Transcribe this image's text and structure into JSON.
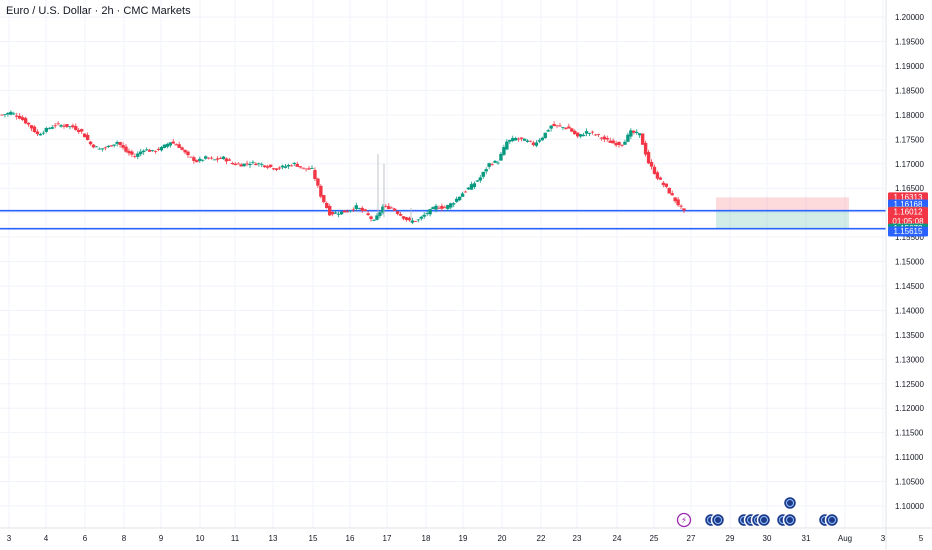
{
  "chart_data": {
    "type": "candlestick",
    "title": "Euro / U.S. Dollar · 2h · CMC Markets",
    "ylim": [
      1.0955,
      1.2035
    ],
    "y_ticks": [
      "1.20000",
      "1.19500",
      "1.19000",
      "1.18500",
      "1.18000",
      "1.17500",
      "1.17000",
      "1.16500",
      "1.16000",
      "1.15500",
      "1.15000",
      "1.14500",
      "1.14000",
      "1.13500",
      "1.13000",
      "1.12500",
      "1.12000",
      "1.11500",
      "1.11000",
      "1.10500",
      "1.10000"
    ],
    "x_ticks": [
      "3",
      "4",
      "6",
      "8",
      "9",
      "10",
      "11",
      "13",
      "15",
      "16",
      "17",
      "18",
      "19",
      "20",
      "22",
      "23",
      "24",
      "25",
      "27",
      "29",
      "30",
      "31",
      "Aug",
      "3",
      "5"
    ],
    "close_path": [
      [
        0,
        1.18
      ],
      [
        6,
        1.1805
      ],
      [
        12,
        1.1795
      ],
      [
        18,
        1.178
      ],
      [
        24,
        1.176
      ],
      [
        30,
        1.177
      ],
      [
        36,
        1.178
      ],
      [
        42,
        1.1778
      ],
      [
        48,
        1.1775
      ],
      [
        54,
        1.1765
      ],
      [
        60,
        1.174
      ],
      [
        66,
        1.173
      ],
      [
        72,
        1.1735
      ],
      [
        78,
        1.1745
      ],
      [
        84,
        1.1725
      ],
      [
        90,
        1.1715
      ],
      [
        96,
        1.173
      ],
      [
        102,
        1.1725
      ],
      [
        108,
        1.1732
      ],
      [
        114,
        1.1745
      ],
      [
        120,
        1.1735
      ],
      [
        126,
        1.1715
      ],
      [
        132,
        1.1705
      ],
      [
        138,
        1.1712
      ],
      [
        144,
        1.1708
      ],
      [
        150,
        1.1712
      ],
      [
        156,
        1.17
      ],
      [
        162,
        1.1698
      ],
      [
        168,
        1.1702
      ],
      [
        174,
        1.17
      ],
      [
        180,
        1.1695
      ],
      [
        186,
        1.169
      ],
      [
        192,
        1.1695
      ],
      [
        198,
        1.17
      ],
      [
        204,
        1.169
      ],
      [
        210,
        1.1688
      ],
      [
        216,
        1.1635
      ],
      [
        222,
        1.1598
      ],
      [
        228,
        1.16
      ],
      [
        234,
        1.1603
      ],
      [
        240,
        1.1612
      ],
      [
        246,
        1.16
      ],
      [
        252,
        1.1582
      ],
      [
        258,
        1.1612
      ],
      [
        264,
        1.161
      ],
      [
        270,
        1.1595
      ],
      [
        276,
        1.1582
      ],
      [
        282,
        1.1585
      ],
      [
        288,
        1.16
      ],
      [
        294,
        1.1612
      ],
      [
        300,
        1.161
      ],
      [
        306,
        1.1622
      ],
      [
        312,
        1.164
      ],
      [
        318,
        1.1655
      ],
      [
        324,
        1.1672
      ],
      [
        330,
        1.17
      ],
      [
        336,
        1.1705
      ],
      [
        342,
        1.1745
      ],
      [
        348,
        1.1752
      ],
      [
        354,
        1.1748
      ],
      [
        360,
        1.174
      ],
      [
        366,
        1.1755
      ],
      [
        372,
        1.1778
      ],
      [
        378,
        1.1776
      ],
      [
        384,
        1.1772
      ],
      [
        390,
        1.1755
      ],
      [
        396,
        1.1765
      ],
      [
        402,
        1.176
      ],
      [
        408,
        1.175
      ],
      [
        414,
        1.1742
      ],
      [
        420,
        1.174
      ],
      [
        426,
        1.1765
      ],
      [
        432,
        1.176
      ],
      [
        438,
        1.1702
      ],
      [
        444,
        1.1672
      ],
      [
        450,
        1.165
      ],
      [
        456,
        1.1625
      ],
      [
        462,
        1.1601
      ]
    ],
    "hlines": [
      1.1604,
      1.15673
    ],
    "position_box": {
      "entry": 1.1604,
      "stop": 1.16313,
      "target": 1.15673
    },
    "price_tags": [
      {
        "value": 1.16313,
        "label": "1.16313",
        "color": "#f23645"
      },
      {
        "value": 1.16168,
        "label": "1.16168",
        "color": "#2962ff"
      },
      {
        "value": 1.16022,
        "label": "1.16022",
        "color": "#787b86"
      },
      {
        "value": 1.16012,
        "label": "1.16012",
        "color": "#f23645",
        "sub": "01:05:08"
      },
      {
        "value": 1.15673,
        "label": "1.15673",
        "color": "#089981"
      },
      {
        "value": 1.15615,
        "label": "1.15615",
        "color": "#2962ff"
      }
    ],
    "colors": {
      "up": "#089981",
      "down": "#f23645",
      "line": "#2962ff",
      "grid": "#f0f3fa"
    }
  }
}
